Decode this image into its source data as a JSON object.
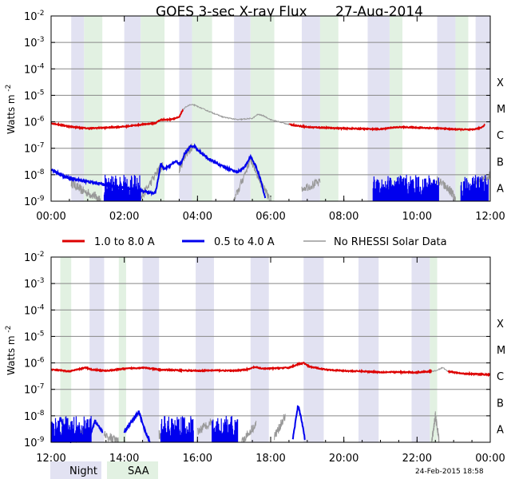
{
  "chart_data": {
    "type": "line",
    "title": "GOES 3-sec X-ray Flux",
    "date": "27-Aug-2014",
    "ylabel": "Watts m",
    "ylabel_exp": "-2",
    "yscale": "log",
    "ylim_exp": [
      -9,
      -2
    ],
    "y_ticks": [
      {
        "exp": "-2",
        "value": 0.01
      },
      {
        "exp": "-3",
        "value": 0.001
      },
      {
        "exp": "-4",
        "value": 0.0001
      },
      {
        "exp": "-5",
        "value": 1e-05
      },
      {
        "exp": "-6",
        "value": 1e-06
      },
      {
        "exp": "-7",
        "value": 1e-07
      },
      {
        "exp": "-8",
        "value": 1e-08
      },
      {
        "exp": "-9",
        "value": 1e-09
      }
    ],
    "flare_classes": [
      {
        "label": "X",
        "exp": -4
      },
      {
        "label": "M",
        "exp": -5
      },
      {
        "label": "C",
        "exp": -6
      },
      {
        "label": "B",
        "exp": -7
      },
      {
        "label": "A",
        "exp": -8
      }
    ],
    "colors": {
      "long": "#dd0000",
      "short": "#0000ee",
      "no_rhessi": "#999999",
      "night": "#e2e2f2",
      "saa": "#e2f1e2",
      "grid": "#888888"
    },
    "legend": {
      "long": "1.0 to 8.0 A",
      "short": "0.5 to 4.0 A",
      "no_rhessi": "No RHESSI Solar Data",
      "night": "Night",
      "saa": "SAA"
    },
    "timestamp": "24-Feb-2015 18:58",
    "panels": [
      {
        "x_ticks": [
          "00:00",
          "02:00",
          "04:00",
          "06:00",
          "08:00",
          "10:00",
          "12:00"
        ],
        "xlim_hours": [
          0,
          12
        ],
        "night": [
          [
            0.55,
            0.9
          ],
          [
            2.0,
            2.45
          ],
          [
            3.5,
            3.85
          ],
          [
            5.0,
            5.45
          ],
          [
            6.85,
            7.35
          ],
          [
            8.65,
            9.25
          ],
          [
            10.55,
            11.05
          ],
          [
            11.6,
            12.0
          ]
        ],
        "saa": [
          [
            0.9,
            1.4
          ],
          [
            2.45,
            3.1
          ],
          [
            3.85,
            4.4
          ],
          [
            5.45,
            6.1
          ],
          [
            7.35,
            7.85
          ],
          [
            9.25,
            9.6
          ],
          [
            11.05,
            11.4
          ]
        ],
        "long": [
          [
            0.0,
            -6.05
          ],
          [
            0.5,
            -6.18
          ],
          [
            1.0,
            -6.25
          ],
          [
            1.5,
            -6.22
          ],
          [
            2.0,
            -6.18
          ],
          [
            2.5,
            -6.1
          ],
          [
            2.85,
            -6.05
          ],
          [
            3.0,
            -5.92
          ],
          [
            3.2,
            -5.92
          ],
          [
            3.35,
            -5.88
          ],
          [
            3.5,
            -5.83
          ],
          [
            3.6,
            -5.55
          ],
          [
            3.7,
            -5.42
          ],
          [
            3.8,
            -5.36
          ],
          [
            3.9,
            -5.36
          ],
          [
            4.0,
            -5.42
          ],
          [
            4.3,
            -5.6
          ],
          [
            4.7,
            -5.82
          ],
          [
            5.1,
            -5.92
          ],
          [
            5.5,
            -5.87
          ],
          [
            5.65,
            -5.72
          ],
          [
            5.8,
            -5.77
          ],
          [
            6.0,
            -5.92
          ],
          [
            6.5,
            -6.1
          ],
          [
            7.0,
            -6.2
          ],
          [
            8.0,
            -6.25
          ],
          [
            9.0,
            -6.28
          ],
          [
            9.3,
            -6.22
          ],
          [
            9.6,
            -6.2
          ],
          [
            10.0,
            -6.22
          ],
          [
            10.5,
            -6.24
          ],
          [
            11.0,
            -6.28
          ],
          [
            11.5,
            -6.3
          ],
          [
            11.75,
            -6.22
          ],
          [
            11.85,
            -6.12
          ]
        ],
        "short": [
          [
            0.0,
            -7.8
          ],
          [
            0.2,
            -7.95
          ],
          [
            0.4,
            -8.1
          ],
          [
            0.55,
            -8.15
          ],
          [
            2.85,
            -8.7
          ],
          [
            3.0,
            -7.6
          ],
          [
            3.1,
            -7.8
          ],
          [
            3.3,
            -7.6
          ],
          [
            3.4,
            -7.5
          ],
          [
            3.55,
            -7.6
          ],
          [
            3.65,
            -7.2
          ],
          [
            3.8,
            -6.95
          ],
          [
            3.9,
            -6.9
          ],
          [
            4.0,
            -7.05
          ],
          [
            4.3,
            -7.4
          ],
          [
            4.7,
            -7.7
          ],
          [
            5.1,
            -7.9
          ],
          [
            5.3,
            -7.7
          ],
          [
            5.45,
            -7.3
          ],
          [
            5.6,
            -7.7
          ],
          [
            5.75,
            -8.3
          ],
          [
            5.85,
            -8.9
          ]
        ],
        "short_noise": [
          [
            1.45,
            2.45
          ],
          [
            8.8,
            10.6
          ],
          [
            11.2,
            11.95
          ]
        ],
        "no_rhessi_segments": [
          [
            [
              0.55,
              -8.3
            ],
            [
              0.85,
              -8.6
            ],
            [
              1.2,
              -8.8
            ],
            [
              1.35,
              -9.0
            ]
          ],
          [
            [
              2.05,
              -9.0
            ],
            [
              2.4,
              -9.0
            ]
          ],
          [
            [
              2.4,
              -9.0
            ],
            [
              2.9,
              -7.9
            ],
            [
              3.05,
              -7.65
            ]
          ],
          [
            [
              3.5,
              -7.8
            ],
            [
              3.65,
              -7.25
            ],
            [
              3.85,
              -6.95
            ]
          ],
          [
            [
              5.0,
              -9.0
            ],
            [
              5.45,
              -7.4
            ],
            [
              5.8,
              -8.5
            ],
            [
              6.0,
              -9.0
            ]
          ],
          [
            [
              6.85,
              -8.5
            ],
            [
              7.35,
              -8.3
            ]
          ],
          [
            [
              9.2,
              -8.6
            ],
            [
              9.5,
              -8.8
            ]
          ],
          [
            [
              10.55,
              -8.2
            ],
            [
              10.9,
              -8.6
            ],
            [
              11.05,
              -8.9
            ]
          ],
          [
            [
              11.6,
              -8.4
            ],
            [
              12.0,
              -8.0
            ]
          ]
        ],
        "gray_long": [
          [
            3.6,
            4.2
          ],
          [
            4.2,
            5.8
          ],
          [
            5.8,
            6.5
          ]
        ]
      },
      {
        "x_ticks": [
          "12:00",
          "14:00",
          "16:00",
          "18:00",
          "20:00",
          "22:00",
          "00:00"
        ],
        "xlim_hours": [
          12,
          24
        ],
        "night": [
          [
            13.05,
            13.45
          ],
          [
            14.5,
            14.95
          ],
          [
            15.95,
            16.45
          ],
          [
            17.45,
            17.95
          ],
          [
            18.9,
            19.45
          ],
          [
            20.4,
            20.95
          ],
          [
            21.85,
            22.35
          ]
        ],
        "saa": [
          [
            12.25,
            12.55
          ],
          [
            13.85,
            14.05
          ],
          [
            22.35,
            22.55
          ]
        ],
        "long": [
          [
            12.0,
            -6.25
          ],
          [
            12.5,
            -6.32
          ],
          [
            12.95,
            -6.18
          ],
          [
            13.1,
            -6.25
          ],
          [
            13.5,
            -6.3
          ],
          [
            14.0,
            -6.22
          ],
          [
            14.5,
            -6.18
          ],
          [
            15.0,
            -6.26
          ],
          [
            15.5,
            -6.28
          ],
          [
            16.0,
            -6.3
          ],
          [
            16.5,
            -6.28
          ],
          [
            17.0,
            -6.3
          ],
          [
            17.4,
            -6.24
          ],
          [
            17.55,
            -6.16
          ],
          [
            17.8,
            -6.22
          ],
          [
            18.5,
            -6.18
          ],
          [
            18.75,
            -6.05
          ],
          [
            18.9,
            -6.0
          ],
          [
            19.05,
            -6.14
          ],
          [
            19.5,
            -6.25
          ],
          [
            20.0,
            -6.3
          ],
          [
            20.5,
            -6.32
          ],
          [
            21.0,
            -6.35
          ],
          [
            21.5,
            -6.35
          ],
          [
            22.0,
            -6.36
          ],
          [
            22.5,
            -6.3
          ],
          [
            22.7,
            -6.18
          ],
          [
            22.85,
            -6.32
          ],
          [
            23.2,
            -6.4
          ],
          [
            23.6,
            -6.42
          ],
          [
            24.0,
            -6.45
          ]
        ],
        "short_bumps": [
          [
            [
              12.1,
              -9.0
            ],
            [
              12.25,
              -8.1
            ],
            [
              12.4,
              -8.6
            ],
            [
              12.55,
              -9.0
            ]
          ],
          [
            [
              13.0,
              -9.0
            ],
            [
              13.2,
              -8.2
            ],
            [
              13.4,
              -8.6
            ]
          ],
          [
            [
              14.0,
              -8.6
            ],
            [
              14.4,
              -7.85
            ],
            [
              14.55,
              -8.5
            ],
            [
              14.7,
              -9.0
            ]
          ],
          [
            [
              18.6,
              -8.9
            ],
            [
              18.75,
              -7.6
            ],
            [
              18.85,
              -8.2
            ],
            [
              18.95,
              -9.0
            ]
          ]
        ],
        "short_noise": [
          [
            12.0,
            13.1
          ],
          [
            15.0,
            15.9
          ],
          [
            16.4,
            17.1
          ]
        ],
        "no_rhessi_segments": [
          [
            [
              12.6,
              -9.0
            ],
            [
              12.95,
              -8.5
            ]
          ],
          [
            [
              13.45,
              -8.7
            ],
            [
              13.85,
              -9.0
            ]
          ],
          [
            [
              14.95,
              -8.7
            ],
            [
              15.1,
              -9.0
            ]
          ],
          [
            [
              16.0,
              -8.6
            ],
            [
              16.4,
              -8.2
            ]
          ],
          [
            [
              17.2,
              -9.0
            ],
            [
              17.6,
              -8.3
            ]
          ],
          [
            [
              18.1,
              -8.8
            ],
            [
              18.4,
              -8.0
            ]
          ],
          [
            [
              22.4,
              -9.0
            ],
            [
              22.5,
              -8.0
            ],
            [
              22.6,
              -8.9
            ]
          ]
        ],
        "gray_long": [
          [
            22.4,
            22.85
          ]
        ]
      }
    ]
  }
}
